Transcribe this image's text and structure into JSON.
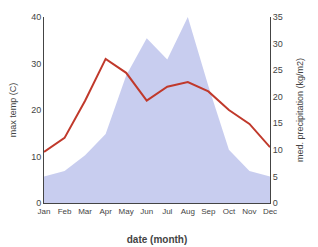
{
  "chart_data": {
    "type": "line",
    "xlabel": "date (month)",
    "ylabel": "max temp (C)",
    "y2label": "med. precipitation (kg/m2)",
    "categories": [
      "Jan",
      "Feb",
      "Mar",
      "Apr",
      "May",
      "Jun",
      "Jul",
      "Aug",
      "Sep",
      "Oct",
      "Nov",
      "Dec"
    ],
    "series": [
      {
        "type": "area",
        "axis": "y2",
        "color": "#b0b8e8",
        "values": [
          5,
          6,
          9,
          13,
          24,
          31,
          27,
          35,
          22,
          10,
          6,
          5
        ]
      },
      {
        "type": "line",
        "color": "#c0392b",
        "values": [
          11,
          14,
          22,
          31,
          28,
          22,
          25,
          26,
          24,
          20,
          17,
          12
        ]
      }
    ],
    "ylim": [
      0,
      40
    ],
    "yticks": [
      0,
      10,
      20,
      30,
      40
    ],
    "y2lim": [
      0,
      35
    ],
    "y2ticks": [
      0,
      5,
      10,
      15,
      20,
      25,
      30,
      35
    ],
    "grid": false
  }
}
